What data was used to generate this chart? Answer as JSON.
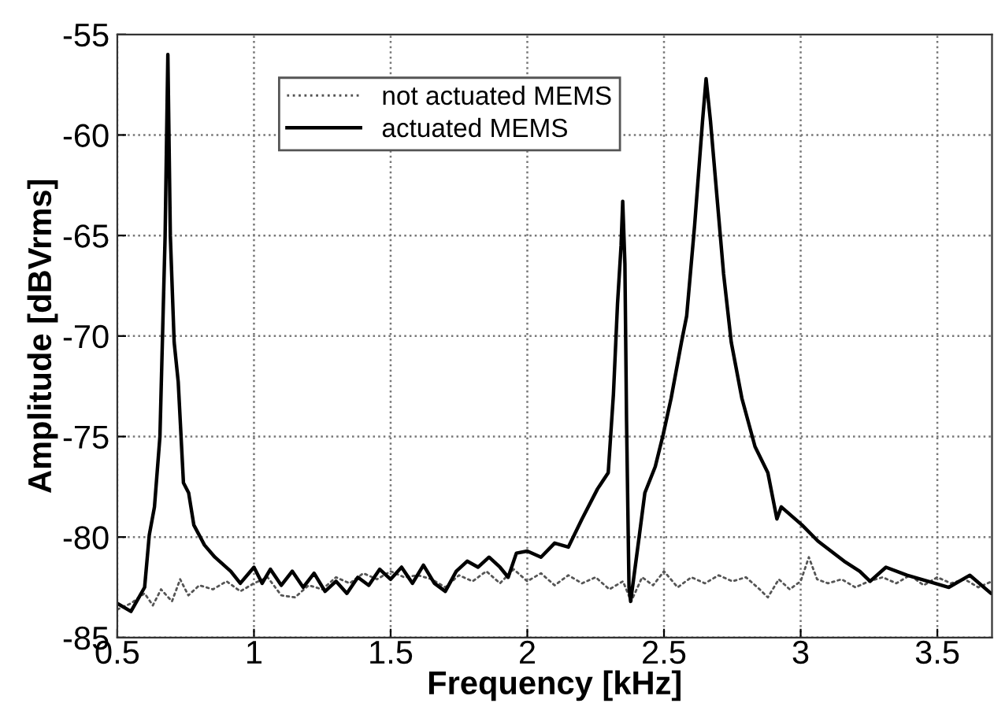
{
  "chart_data": {
    "type": "line",
    "xlabel": "Frequency [kHz]",
    "ylabel": "Amplitude [dBVrms]",
    "xlim": [
      0.5,
      3.7
    ],
    "xticks": [
      0.5,
      1,
      1.5,
      2,
      2.5,
      3,
      3.5
    ],
    "ylim": [
      -85,
      -55
    ],
    "yticks": [
      -85,
      -80,
      -75,
      -70,
      -65,
      -60,
      -55
    ],
    "grid": true,
    "legend": "top left",
    "marker": "none",
    "series": [
      {
        "name": "not actuated MEMS",
        "color": "#555555",
        "line_style": "dotted",
        "x": [
          0.5,
          0.55,
          0.6,
          0.63,
          0.66,
          0.7,
          0.73,
          0.76,
          0.8,
          0.85,
          0.9,
          0.95,
          1.0,
          1.05,
          1.1,
          1.15,
          1.2,
          1.25,
          1.3,
          1.35,
          1.4,
          1.45,
          1.5,
          1.55,
          1.6,
          1.65,
          1.7,
          1.75,
          1.8,
          1.85,
          1.9,
          1.95,
          2.0,
          2.05,
          2.1,
          2.15,
          2.2,
          2.25,
          2.3,
          2.35,
          2.38,
          2.42,
          2.46,
          2.5,
          2.55,
          2.6,
          2.65,
          2.7,
          2.75,
          2.8,
          2.85,
          2.88,
          2.92,
          2.96,
          3.0,
          3.03,
          3.06,
          3.1,
          3.15,
          3.2,
          3.25,
          3.3,
          3.35,
          3.4,
          3.45,
          3.5,
          3.55,
          3.6,
          3.65,
          3.7
        ],
        "values": [
          -83.6,
          -83.3,
          -82.8,
          -83.4,
          -82.6,
          -83.2,
          -82.1,
          -82.9,
          -82.4,
          -82.6,
          -82.2,
          -82.7,
          -82.3,
          -82.0,
          -82.9,
          -83.0,
          -82.4,
          -82.6,
          -82.0,
          -82.3,
          -81.8,
          -82.1,
          -81.7,
          -82.0,
          -81.9,
          -82.1,
          -82.5,
          -81.9,
          -82.2,
          -81.7,
          -82.3,
          -81.6,
          -82.2,
          -81.8,
          -82.4,
          -81.9,
          -82.3,
          -82.0,
          -82.6,
          -82.2,
          -83.2,
          -82.0,
          -82.4,
          -81.7,
          -82.5,
          -82.0,
          -82.3,
          -81.9,
          -82.2,
          -82.0,
          -82.6,
          -83.0,
          -82.1,
          -82.6,
          -82.2,
          -81.0,
          -82.1,
          -82.3,
          -82.1,
          -82.5,
          -82.2,
          -82.0,
          -82.3,
          -81.9,
          -82.4,
          -82.0,
          -82.3,
          -82.1,
          -82.5,
          -82.2
        ]
      },
      {
        "name": "actuated MEMS",
        "color": "#000000",
        "line_style": "solid",
        "x": [
          0.5,
          0.55,
          0.6,
          0.617,
          0.636,
          0.656,
          0.675,
          0.685,
          0.694,
          0.708,
          0.723,
          0.742,
          0.761,
          0.78,
          0.819,
          0.857,
          0.915,
          0.95,
          1.0,
          1.03,
          1.06,
          1.1,
          1.14,
          1.18,
          1.22,
          1.26,
          1.3,
          1.34,
          1.38,
          1.42,
          1.46,
          1.5,
          1.54,
          1.58,
          1.62,
          1.66,
          1.7,
          1.74,
          1.78,
          1.82,
          1.86,
          1.9,
          1.93,
          1.96,
          2.0,
          2.05,
          2.1,
          2.15,
          2.2,
          2.257,
          2.296,
          2.315,
          2.33,
          2.343,
          2.349,
          2.357,
          2.363,
          2.372,
          2.378,
          2.41,
          2.43,
          2.468,
          2.497,
          2.526,
          2.564,
          2.583,
          2.612,
          2.641,
          2.654,
          2.67,
          2.718,
          2.746,
          2.785,
          2.833,
          2.88,
          2.913,
          2.929,
          3.005,
          3.063,
          3.159,
          3.216,
          3.254,
          3.312,
          3.389,
          3.466,
          3.542,
          3.619,
          3.696
        ],
        "values": [
          -83.3,
          -83.7,
          -82.5,
          -79.9,
          -78.5,
          -75.0,
          -65.0,
          -56.0,
          -65.0,
          -70.3,
          -72.3,
          -77.3,
          -77.8,
          -79.4,
          -80.4,
          -81.0,
          -81.7,
          -82.3,
          -81.5,
          -82.3,
          -81.6,
          -82.4,
          -81.7,
          -82.5,
          -81.8,
          -82.7,
          -82.2,
          -82.8,
          -82.0,
          -82.4,
          -81.6,
          -82.1,
          -81.5,
          -82.3,
          -81.4,
          -82.3,
          -82.7,
          -81.7,
          -81.2,
          -81.5,
          -81.0,
          -81.5,
          -82.0,
          -80.8,
          -80.7,
          -81.0,
          -80.3,
          -80.5,
          -79.1,
          -77.6,
          -76.8,
          -72.9,
          -68.4,
          -65.5,
          -63.3,
          -66.4,
          -74.2,
          -82.5,
          -83.2,
          -79.9,
          -77.8,
          -76.5,
          -74.9,
          -73.1,
          -70.3,
          -69.0,
          -64.5,
          -59.3,
          -57.2,
          -59.3,
          -66.9,
          -70.3,
          -73.1,
          -75.5,
          -76.8,
          -79.1,
          -78.5,
          -79.4,
          -80.2,
          -81.2,
          -81.7,
          -82.2,
          -81.5,
          -81.9,
          -82.2,
          -82.5,
          -81.9,
          -82.8
        ]
      }
    ]
  }
}
